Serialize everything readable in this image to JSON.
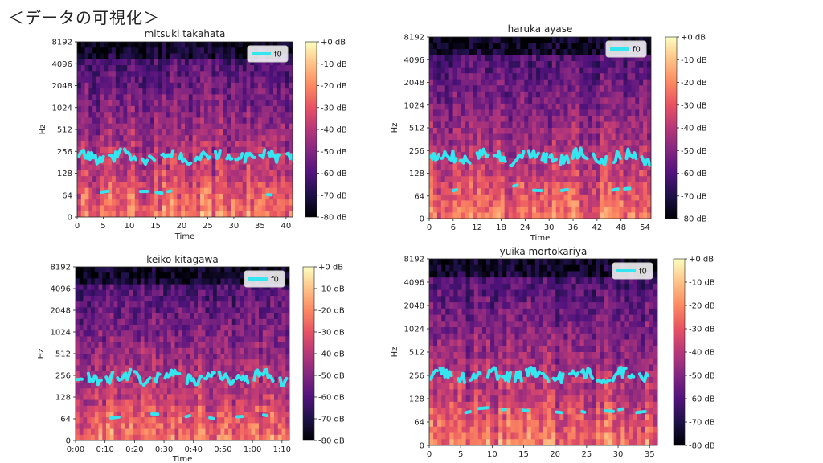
{
  "slide": {
    "title": "＜データの可視化＞"
  },
  "colorbar": {
    "ticks": [
      "+0 dB",
      "-10 dB",
      "-20 dB",
      "-30 dB",
      "-40 dB",
      "-50 dB",
      "-60 dB",
      "-70 dB",
      "-80 dB"
    ]
  },
  "palette": {
    "stops": [
      "#000004",
      "#1d1147",
      "#51127c",
      "#822681",
      "#b73779",
      "#e75263",
      "#fc8961",
      "#fec287",
      "#fcfdbf"
    ],
    "f0_color": "#33e6ef"
  },
  "chart_data": [
    {
      "type": "heatmap",
      "title": "mitsuki takahata",
      "xlabel": "Time",
      "ylabel": "Hz",
      "x_ticks": [
        "0",
        "5",
        "10",
        "15",
        "20",
        "25",
        "30",
        "35",
        "40"
      ],
      "y_ticks": [
        "0",
        "64",
        "128",
        "256",
        "512",
        "1024",
        "2048",
        "4096",
        "8192"
      ],
      "legend": {
        "label": "f0",
        "position": "top-right"
      },
      "f0_level_hz": 220,
      "f0_low_hz": 70
    },
    {
      "type": "heatmap",
      "title": "haruka ayase",
      "xlabel": "Time",
      "ylabel": "Hz",
      "x_ticks": [
        "0",
        "6",
        "12",
        "18",
        "24",
        "30",
        "36",
        "42",
        "48",
        "54"
      ],
      "y_ticks": [
        "0",
        "64",
        "128",
        "256",
        "512",
        "1024",
        "2048",
        "4096",
        "8192"
      ],
      "legend": {
        "label": "f0",
        "position": "top-right"
      },
      "f0_level_hz": 210,
      "f0_low_hz": 80
    },
    {
      "type": "heatmap",
      "title": "keiko kitagawa",
      "xlabel": "Time",
      "ylabel": "Hz",
      "x_ticks": [
        "0:00",
        "0:10",
        "0:20",
        "0:30",
        "0:40",
        "0:50",
        "1:00",
        "1:10"
      ],
      "y_ticks": [
        "0",
        "64",
        "128",
        "256",
        "512",
        "1024",
        "2048",
        "4096",
        "8192"
      ],
      "legend": {
        "label": "f0",
        "position": "top-right"
      },
      "f0_level_hz": 240,
      "f0_low_hz": 70
    },
    {
      "type": "heatmap",
      "title": "yuika mortokariya",
      "xlabel": "",
      "ylabel": "Hz",
      "x_ticks": [
        "0",
        "5",
        "10",
        "15",
        "20",
        "25",
        "30",
        "35"
      ],
      "y_ticks": [
        "0",
        "64",
        "128",
        "256",
        "512",
        "1024",
        "2048",
        "4096",
        "8192"
      ],
      "legend": {
        "label": "f0",
        "position": "top-right"
      },
      "f0_level_hz": 260,
      "f0_low_hz": 90
    }
  ]
}
